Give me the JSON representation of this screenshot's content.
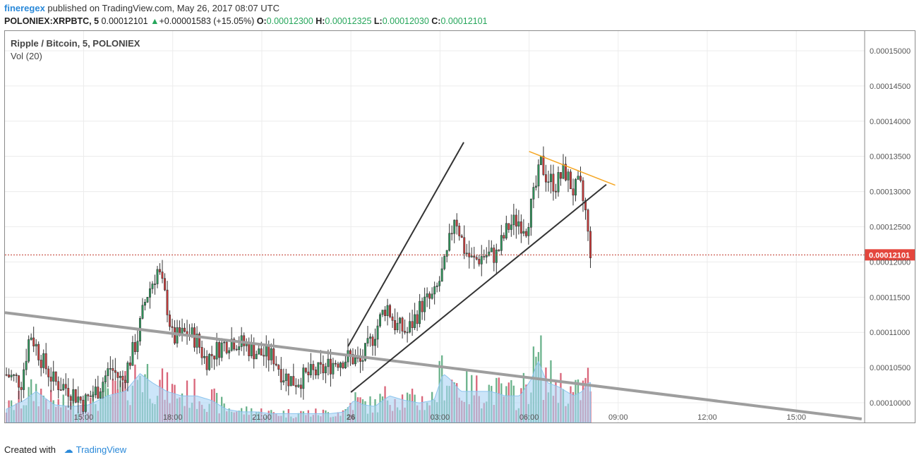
{
  "header": {
    "author": "fineregex",
    "published": " published on TradingView.com, May 26, 2017 08:07 UTC"
  },
  "ohlc": {
    "symbol": "POLONIEX:XRPBTC, 5",
    "last": "0.00012101",
    "change": "+0.00001583 (+15.05%)",
    "o_label": "O:",
    "o": "0.00012300",
    "h_label": "H:",
    "h": "0.00012325",
    "l_label": "L:",
    "l": "0.00012030",
    "c_label": "C:",
    "c": "0.00012101"
  },
  "legend": {
    "symbol": "Ripple / Bitcoin, 5, POLONIEX",
    "volume": "Vol (20)"
  },
  "footer": {
    "created_with": "Created with",
    "brand": "TradingView"
  },
  "colors": {
    "up": "#2e9c5e",
    "down": "#d43c3c",
    "vol_up": "#6bb38c",
    "vol_down": "#d9667a",
    "vol_ma": "#aad4f5",
    "price_line": "#c0392b",
    "trend": "#333333",
    "resistance": "#f5a623",
    "long_trend": "#9e9e9e"
  },
  "chart_data": {
    "type": "candlestick",
    "price_axis_labels": [
      "0.00015000",
      "0.00014500",
      "0.00014000",
      "0.00013500",
      "0.00013000",
      "0.00012500",
      "0.00012000",
      "0.00011500",
      "0.00011000",
      "0.00010500",
      "0.00010000"
    ],
    "price_axis_values": [
      0.00015,
      0.000145,
      0.00014,
      0.000135,
      0.00013,
      0.000125,
      0.00012,
      0.000115,
      0.00011,
      0.000105,
      0.0001
    ],
    "y_range": [
      9.72e-05,
      0.0001528
    ],
    "current_price_label": "0.00012101",
    "current_price": 0.00012101,
    "time_axis_labels": [
      "15:00",
      "18:00",
      "21:00",
      "26",
      "03:00",
      "06:00",
      "09:00",
      "12:00",
      "15:00"
    ],
    "time_axis_hours": [
      15,
      18,
      21,
      24,
      27,
      30,
      33,
      36,
      39
    ],
    "x_range_hours": [
      12.35,
      41.3
    ],
    "price_path": [
      [
        12.4,
        0.000104
      ],
      [
        12.9,
        0.000103
      ],
      [
        13.2,
        0.00011
      ],
      [
        13.6,
        0.000106
      ],
      [
        14.0,
        0.000103
      ],
      [
        14.5,
        0.000102
      ],
      [
        15.0,
        0.0001
      ],
      [
        15.5,
        0.000102
      ],
      [
        15.9,
        0.000105
      ],
      [
        16.3,
        0.000103
      ],
      [
        16.8,
        0.000109
      ],
      [
        17.1,
        0.000115
      ],
      [
        17.5,
        0.000119
      ],
      [
        17.8,
        0.000114
      ],
      [
        18.0,
        0.000109
      ],
      [
        18.5,
        0.00011
      ],
      [
        18.8,
        0.000109
      ],
      [
        19.1,
        0.000106
      ],
      [
        19.6,
        0.000108
      ],
      [
        20.0,
        0.000109
      ],
      [
        20.5,
        0.000108
      ],
      [
        20.9,
        0.000107
      ],
      [
        21.4,
        0.0001065
      ],
      [
        21.7,
        0.000104
      ],
      [
        22.1,
        0.000103
      ],
      [
        22.6,
        0.000104
      ],
      [
        23.0,
        0.0001045
      ],
      [
        23.5,
        0.000106
      ],
      [
        24.0,
        0.0001065
      ],
      [
        24.3,
        0.0001055
      ],
      [
        24.6,
        0.000108
      ],
      [
        24.9,
        0.000111
      ],
      [
        25.2,
        0.000114
      ],
      [
        25.5,
        0.000111
      ],
      [
        25.9,
        0.00011
      ],
      [
        26.4,
        0.000114
      ],
      [
        26.8,
        0.000115
      ],
      [
        27.2,
        0.00012
      ],
      [
        27.5,
        0.000127
      ],
      [
        27.8,
        0.000122
      ],
      [
        28.1,
        0.00012
      ],
      [
        28.5,
        0.000121
      ],
      [
        28.9,
        0.000121
      ],
      [
        29.3,
        0.000125
      ],
      [
        29.6,
        0.000126
      ],
      [
        29.9,
        0.000125
      ],
      [
        30.2,
        0.00013
      ],
      [
        30.4,
        0.000134
      ],
      [
        30.6,
        0.000132
      ],
      [
        30.9,
        0.000131
      ],
      [
        31.2,
        0.000133
      ],
      [
        31.5,
        0.00013
      ],
      [
        31.7,
        0.000131
      ],
      [
        31.9,
        0.000127
      ],
      [
        32.0,
        0.000123
      ],
      [
        32.1,
        0.000121
      ]
    ],
    "volume_relative": [
      [
        12.4,
        0.15
      ],
      [
        13.0,
        0.25
      ],
      [
        13.4,
        0.35
      ],
      [
        14.0,
        0.2
      ],
      [
        14.6,
        0.18
      ],
      [
        15.2,
        0.2
      ],
      [
        15.8,
        0.3
      ],
      [
        16.4,
        0.35
      ],
      [
        16.9,
        0.55
      ],
      [
        17.3,
        0.45
      ],
      [
        17.8,
        0.35
      ],
      [
        18.3,
        0.3
      ],
      [
        18.8,
        0.3
      ],
      [
        19.3,
        0.25
      ],
      [
        19.8,
        0.15
      ],
      [
        20.3,
        0.12
      ],
      [
        20.8,
        0.12
      ],
      [
        21.3,
        0.1
      ],
      [
        21.8,
        0.1
      ],
      [
        22.3,
        0.1
      ],
      [
        22.8,
        0.1
      ],
      [
        23.3,
        0.1
      ],
      [
        23.8,
        0.12
      ],
      [
        24.1,
        0.25
      ],
      [
        24.4,
        0.2
      ],
      [
        24.8,
        0.18
      ],
      [
        25.3,
        0.3
      ],
      [
        25.8,
        0.25
      ],
      [
        26.3,
        0.22
      ],
      [
        26.8,
        0.25
      ],
      [
        27.1,
        0.55
      ],
      [
        27.3,
        0.5
      ],
      [
        27.7,
        0.35
      ],
      [
        28.2,
        0.35
      ],
      [
        28.7,
        0.35
      ],
      [
        29.2,
        0.3
      ],
      [
        29.7,
        0.3
      ],
      [
        30.1,
        0.5
      ],
      [
        30.3,
        0.7
      ],
      [
        30.6,
        0.45
      ],
      [
        31.0,
        0.4
      ],
      [
        31.5,
        0.3
      ],
      [
        31.8,
        0.35
      ],
      [
        32.0,
        0.45
      ]
    ],
    "drawings": {
      "channel_upper": [
        [
          23.9,
          0.000108
        ],
        [
          27.8,
          0.000137
        ]
      ],
      "channel_lower": [
        [
          24.0,
          0.0001015
        ],
        [
          32.6,
          0.000131
        ]
      ],
      "resistance": [
        [
          30.0,
          0.0001357
        ],
        [
          32.9,
          0.0001309
        ]
      ],
      "long_trend": [
        [
          12.35,
          0.0001128
        ],
        [
          41.2,
          9.77e-05
        ]
      ]
    },
    "grid": true
  }
}
